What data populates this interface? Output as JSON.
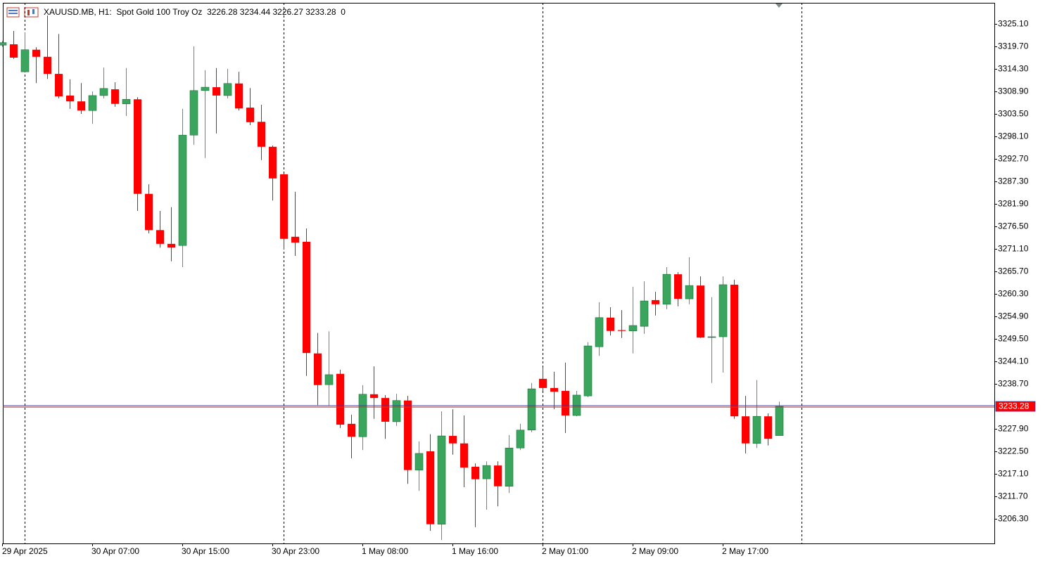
{
  "chart_data": {
    "type": "candlestick",
    "title": "XAUUSD.MB, H1:  Spot Gold 100 Troy Oz  3226.28 3234.44 3226.27 3233.28  0",
    "categories": [
      "29 Apr 2025",
      null,
      null,
      null,
      null,
      null,
      null,
      null,
      "30 Apr 07:00",
      null,
      null,
      null,
      null,
      null,
      null,
      null,
      "30 Apr 15:00",
      null,
      null,
      null,
      null,
      null,
      null,
      null,
      "30 Apr 23:00",
      null,
      null,
      null,
      null,
      null,
      null,
      null,
      "1 May 08:00",
      null,
      null,
      null,
      null,
      null,
      null,
      null,
      "1 May 16:00",
      null,
      null,
      null,
      null,
      null,
      null,
      null,
      "2 May 01:00",
      null,
      null,
      null,
      null,
      null,
      null,
      null,
      "2 May 09:00",
      null,
      null,
      null,
      null,
      null,
      null,
      null,
      "2 May 17:00",
      null,
      null,
      null,
      null,
      null
    ],
    "open": [
      3320.0,
      3320.2,
      3313.6,
      3318.9,
      3317.2,
      3313.1,
      3307.9,
      3306.5,
      3304.3,
      3307.9,
      3309.4,
      3305.9,
      3307.0,
      3284.3,
      3275.6,
      3272.3,
      3271.9,
      3298.4,
      3309.1,
      3309.9,
      3307.9,
      3310.8,
      3305.0,
      3301.6,
      3295.6,
      3289.0,
      3274.0,
      3272.8,
      3246.0,
      3238.5,
      3241.1,
      3229.1,
      3226.0,
      3236.2,
      3235.3,
      3229.6,
      3234.7,
      3218.0,
      3222.5,
      3205.0,
      3226.2,
      3224.4,
      3218.8,
      3215.9,
      3219.1,
      3214.1,
      3223.3,
      3227.6,
      3239.9,
      3237.7,
      3237.0,
      3231.1,
      3235.8,
      3247.6,
      3254.6,
      3251.6,
      3251.4,
      3252.5,
      3258.8,
      3257.8,
      3265.0,
      3259.1,
      3262.3,
      3249.9,
      3250.0,
      3262.5,
      3230.9,
      3224.4,
      3230.9,
      3226.28
    ],
    "high": [
      3321.0,
      3323.4,
      3323.1,
      3319.5,
      3327.1,
      3322.7,
      3311.8,
      3310.9,
      3308.9,
      3314.6,
      3311.1,
      3314.5,
      3307.5,
      3286.6,
      3280.2,
      3281.1,
      3304.7,
      3319.7,
      3314.0,
      3314.5,
      3314.3,
      3313.6,
      3309.7,
      3305.7,
      3295.9,
      3289.2,
      3284.8,
      3276.0,
      3250.9,
      3251.3,
      3242.1,
      3231.3,
      3238.4,
      3242.9,
      3236.0,
      3236.3,
      3235.8,
      3224.9,
      3226.6,
      3232.1,
      3232.6,
      3231.1,
      3219.6,
      3220.1,
      3220.1,
      3226.4,
      3229.1,
      3238.9,
      3242.7,
      3241.6,
      3243.8,
      3237.0,
      3248.7,
      3258.3,
      3257.1,
      3256.4,
      3262.0,
      3263.3,
      3260.8,
      3266.7,
      3265.5,
      3269.1,
      3264.5,
      3259.5,
      3264.5,
      3263.7,
      3235.8,
      3239.6,
      3231.6,
      3234.44
    ],
    "low": [
      3319.6,
      3316.7,
      3313.5,
      3310.9,
      3311.9,
      3307.2,
      3304.7,
      3303.5,
      3301.1,
      3307.2,
      3305.2,
      3303.0,
      3280.2,
      3274.8,
      3271.4,
      3268.1,
      3266.7,
      3296.1,
      3292.9,
      3298.8,
      3307.2,
      3304.3,
      3300.8,
      3292.4,
      3282.7,
      3270.9,
      3269.4,
      3240.6,
      3233.6,
      3233.5,
      3228.1,
      3220.8,
      3222.8,
      3230.3,
      3225.5,
      3228.6,
      3214.7,
      3213.0,
      3203.4,
      3201.2,
      3221.7,
      3213.9,
      3204.3,
      3208.5,
      3209.3,
      3212.5,
      3222.8,
      3227.1,
      3237.0,
      3232.6,
      3226.9,
      3230.9,
      3235.5,
      3245.4,
      3250.3,
      3249.7,
      3246.0,
      3250.7,
      3255.1,
      3256.6,
      3257.3,
      3257.8,
      3249.7,
      3238.9,
      3241.4,
      3230.3,
      3222.0,
      3223.3,
      3223.9,
      3226.27
    ],
    "close": [
      3320.6,
      3317.0,
      3318.9,
      3317.2,
      3313.1,
      3307.7,
      3306.5,
      3304.3,
      3307.9,
      3309.6,
      3305.9,
      3307.0,
      3284.3,
      3275.6,
      3272.3,
      3271.4,
      3298.4,
      3309.1,
      3309.9,
      3307.9,
      3310.8,
      3304.8,
      3301.5,
      3295.6,
      3288.0,
      3273.5,
      3272.6,
      3246.1,
      3238.4,
      3240.9,
      3228.9,
      3226.0,
      3236.2,
      3235.3,
      3229.6,
      3234.7,
      3218.0,
      3222.0,
      3205.0,
      3226.2,
      3224.4,
      3218.6,
      3215.8,
      3219.1,
      3214.1,
      3223.3,
      3227.6,
      3237.5,
      3237.7,
      3236.8,
      3231.1,
      3236.0,
      3247.8,
      3254.6,
      3251.4,
      3251.4,
      3252.7,
      3258.6,
      3257.8,
      3265.0,
      3259.1,
      3262.3,
      3249.8,
      3250.0,
      3262.5,
      3230.9,
      3224.4,
      3230.9,
      3225.5,
      3233.28
    ],
    "up_color": "#3ba55d",
    "down_color": "#ff0000",
    "last_price": 3233.28,
    "ylim": [
      3200.39,
      3330.16
    ],
    "yticks": [
      {
        "value": 3325.1,
        "label": "3325.10"
      },
      {
        "value": 3319.7,
        "label": "3319.70"
      },
      {
        "value": 3314.3,
        "label": "3314.30"
      },
      {
        "value": 3308.9,
        "label": "3308.90"
      },
      {
        "value": 3303.5,
        "label": "3303.50"
      },
      {
        "value": 3298.1,
        "label": "3298.10"
      },
      {
        "value": 3292.7,
        "label": "3292.70"
      },
      {
        "value": 3287.3,
        "label": "3287.30"
      },
      {
        "value": 3281.9,
        "label": "3281.90"
      },
      {
        "value": 3276.5,
        "label": "3276.50"
      },
      {
        "value": 3271.1,
        "label": "3271.10"
      },
      {
        "value": 3265.7,
        "label": "3265.70"
      },
      {
        "value": 3260.3,
        "label": "3260.30"
      },
      {
        "value": 3254.9,
        "label": "3254.90"
      },
      {
        "value": 3249.5,
        "label": "3249.50"
      },
      {
        "value": 3244.1,
        "label": "3244.10"
      },
      {
        "value": 3238.7,
        "label": "3238.70"
      },
      {
        "value": 3227.9,
        "label": "3227.90"
      },
      {
        "value": 3222.5,
        "label": "3222.50"
      },
      {
        "value": 3217.1,
        "label": "3217.10"
      },
      {
        "value": 3211.7,
        "label": "3211.70"
      },
      {
        "value": 3206.3,
        "label": "3206.30"
      }
    ]
  }
}
